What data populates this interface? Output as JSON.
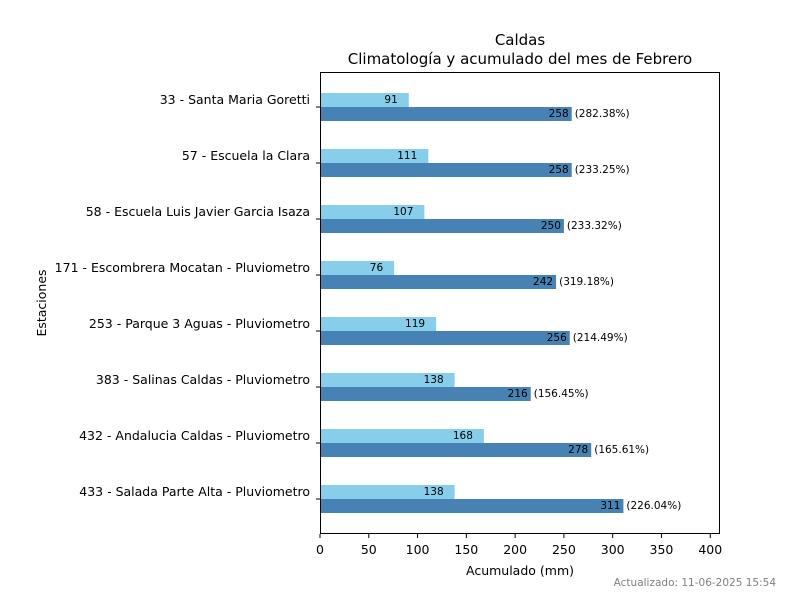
{
  "chart_data": {
    "type": "bar",
    "orientation": "horizontal",
    "title": "Caldas",
    "subtitle": "Climatología y acumulado del mes de Febrero",
    "xlabel": "Acumulado (mm)",
    "ylabel": "Estaciones",
    "xlim": [
      0,
      410
    ],
    "xticks": [
      0,
      50,
      100,
      150,
      200,
      250,
      300,
      350,
      400
    ],
    "grid": false,
    "colors": {
      "climatologia": "#87ceeb",
      "acumulado": "#4682b4"
    },
    "categories": [
      "33 - Santa Maria Goretti",
      "57 - Escuela la Clara",
      "58 - Escuela Luis Javier Garcia Isaza",
      "171 - Escombrera Mocatan - Pluviometro",
      "253 - Parque 3 Aguas - Pluviometro",
      "383 - Salinas Caldas - Pluviometro",
      "432 - Andalucia Caldas - Pluviometro",
      "433 - Salada Parte Alta - Pluviometro"
    ],
    "climatologia": [
      91,
      111,
      107,
      76,
      119,
      138,
      168,
      138
    ],
    "acumulado": [
      258,
      258,
      250,
      242,
      256,
      216,
      278,
      311
    ],
    "percent_labels": [
      "(282.38%)",
      "(233.25%)",
      "(233.32%)",
      "(319.18%)",
      "(214.49%)",
      "(156.45%)",
      "(165.61%)",
      "(226.04%)"
    ]
  },
  "footer": "Actualizado: 11-06-2025 15:54"
}
